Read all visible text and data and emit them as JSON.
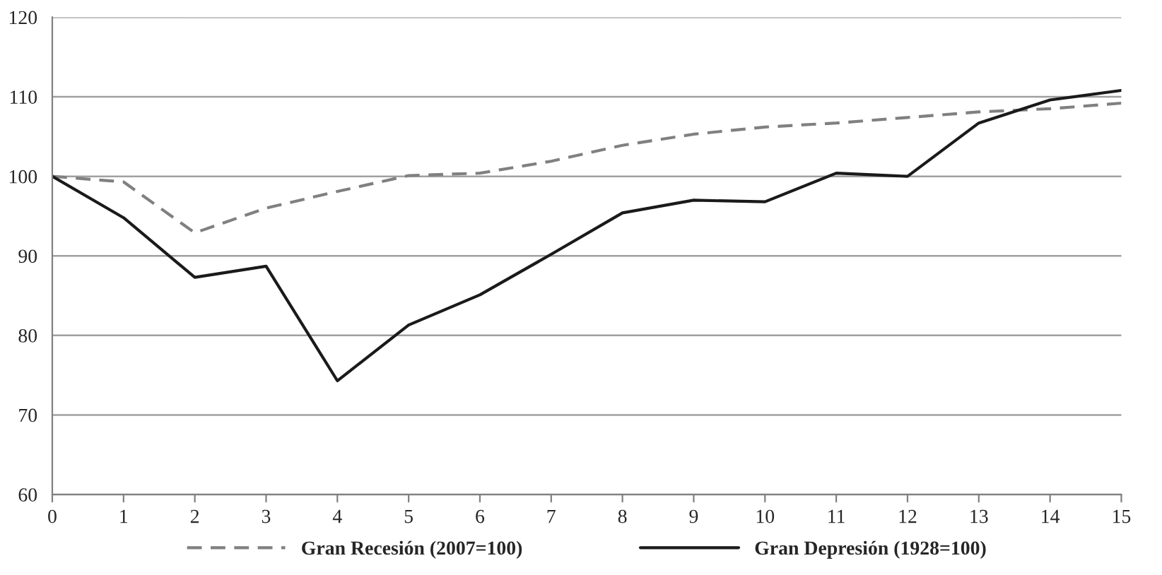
{
  "chart_data": {
    "type": "line",
    "x": [
      0,
      1,
      2,
      3,
      4,
      5,
      6,
      7,
      8,
      9,
      10,
      11,
      12,
      13,
      14,
      15
    ],
    "series": [
      {
        "name": "Gran Recesión (2007=100)",
        "color": "#808080",
        "line_style": "dashed",
        "values": [
          100,
          99.3,
          92.9,
          96.0,
          98.1,
          100.1,
          100.4,
          101.9,
          103.9,
          105.3,
          106.2,
          106.7,
          107.4,
          108.1,
          108.5,
          109.2
        ]
      },
      {
        "name": "Gran Depresión (1928=100)",
        "color": "#1a1a1a",
        "line_style": "solid",
        "values": [
          100,
          94.8,
          87.3,
          88.7,
          74.3,
          81.3,
          85.1,
          90.2,
          95.4,
          97.0,
          96.8,
          100.4,
          100.0,
          106.7,
          109.6,
          110.8
        ]
      }
    ],
    "xlim": [
      0,
      15
    ],
    "xticks": [
      0,
      1,
      2,
      3,
      4,
      5,
      6,
      7,
      8,
      9,
      10,
      11,
      12,
      13,
      14,
      15
    ],
    "ylim": [
      60,
      120
    ],
    "yticks": [
      60,
      70,
      80,
      90,
      100,
      110,
      120
    ],
    "grid": "y",
    "legend": "bottom",
    "marker": "none"
  }
}
